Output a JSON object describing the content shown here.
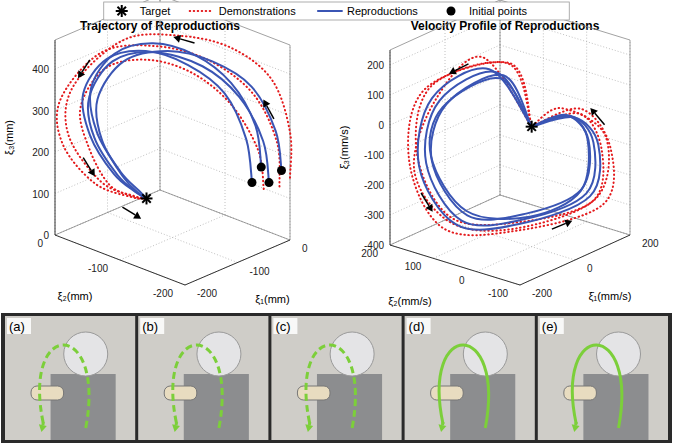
{
  "chart_data": [
    {
      "type": "line3d",
      "title": "Trajectory of Reproductions",
      "xlabel": "ξ₁(mm)",
      "ylabel": "ξ₂(mm)",
      "zlabel": "ξ₃(mm)",
      "xlim": [
        -200,
        0
      ],
      "xticks": [
        -200,
        -100,
        0
      ],
      "ylim": [
        -200,
        0
      ],
      "yticks": [
        -200,
        -100,
        0
      ],
      "zlim": [
        0,
        470
      ],
      "zticks": [
        0,
        100,
        200,
        300,
        400
      ],
      "grid": true,
      "legend": "top",
      "series": [
        {
          "name": "Target",
          "color": "#000000",
          "marker": "star",
          "values": [
            [
              -100,
              -60,
              70
            ]
          ]
        },
        {
          "name": "Demonstrations",
          "color": "#e41a1c",
          "line_style": "dotted",
          "values": [
            [
              [
                0,
                -200,
                150
              ],
              [
                0,
                -200,
                260
              ],
              [
                -10,
                -180,
                380
              ],
              [
                -40,
                -140,
                450
              ],
              [
                -80,
                -90,
                470
              ],
              [
                -120,
                -40,
                450
              ],
              [
                -165,
                0,
                340
              ],
              [
                -175,
                0,
                230
              ],
              [
                -150,
                -30,
                120
              ],
              [
                -115,
                -55,
                80
              ],
              [
                -100,
                -60,
                70
              ]
            ],
            [
              [
                -20,
                -200,
                140
              ],
              [
                -25,
                -200,
                250
              ],
              [
                -40,
                -175,
                360
              ],
              [
                -70,
                -130,
                430
              ],
              [
                -110,
                -80,
                455
              ],
              [
                -150,
                -30,
                430
              ],
              [
                -190,
                0,
                320
              ],
              [
                -185,
                0,
                210
              ],
              [
                -155,
                -25,
                115
              ],
              [
                -118,
                -52,
                78
              ],
              [
                -100,
                -60,
                70
              ]
            ],
            [
              [
                -50,
                -200,
                150
              ],
              [
                -55,
                -195,
                245
              ],
              [
                -70,
                -165,
                345
              ],
              [
                -95,
                -125,
                410
              ],
              [
                -125,
                -80,
                430
              ],
              [
                -155,
                -40,
                400
              ],
              [
                -170,
                -15,
                300
              ],
              [
                -160,
                -20,
                200
              ],
              [
                -140,
                -35,
                110
              ],
              [
                -115,
                -52,
                78
              ],
              [
                -100,
                -60,
                70
              ]
            ]
          ]
        },
        {
          "name": "Reproductions",
          "color": "#3a55b4",
          "line_style": "solid",
          "values": [
            [
              [
                -40,
                -200,
                160
              ],
              [
                -45,
                -195,
                260
              ],
              [
                -60,
                -170,
                360
              ],
              [
                -80,
                -130,
                420
              ],
              [
                -110,
                -80,
                440
              ],
              [
                -140,
                -40,
                410
              ],
              [
                -160,
                -20,
                320
              ],
              [
                -150,
                -20,
                220
              ],
              [
                -130,
                -40,
                130
              ],
              [
                -110,
                -55,
                85
              ],
              [
                -100,
                -60,
                70
              ]
            ],
            [
              [
                -60,
                -190,
                165
              ],
              [
                -65,
                -185,
                270
              ],
              [
                -75,
                -160,
                370
              ],
              [
                -95,
                -120,
                425
              ],
              [
                -120,
                -75,
                445
              ],
              [
                -145,
                -35,
                415
              ],
              [
                -165,
                -15,
                330
              ],
              [
                -155,
                -18,
                225
              ],
              [
                -135,
                -38,
                135
              ],
              [
                -112,
                -52,
                88
              ],
              [
                -100,
                -60,
                70
              ]
            ],
            [
              [
                -30,
                -180,
                180
              ],
              [
                -35,
                -175,
                280
              ],
              [
                -50,
                -150,
                375
              ],
              [
                -70,
                -110,
                430
              ],
              [
                -100,
                -70,
                450
              ],
              [
                -130,
                -35,
                420
              ],
              [
                -150,
                -15,
                335
              ],
              [
                -145,
                -20,
                230
              ],
              [
                -128,
                -42,
                140
              ],
              [
                -108,
                -55,
                90
              ],
              [
                -100,
                -60,
                70
              ]
            ],
            [
              [
                -10,
                -195,
                170
              ],
              [
                -15,
                -190,
                265
              ],
              [
                -30,
                -165,
                365
              ],
              [
                -55,
                -125,
                415
              ],
              [
                -90,
                -85,
                435
              ],
              [
                -125,
                -45,
                405
              ],
              [
                -150,
                -25,
                315
              ],
              [
                -145,
                -28,
                215
              ],
              [
                -125,
                -45,
                125
              ],
              [
                -108,
                -56,
                82
              ],
              [
                -100,
                -60,
                70
              ]
            ]
          ]
        },
        {
          "name": "Initial points",
          "color": "#000000",
          "marker": "circle",
          "values": [
            [
              -40,
              -200,
              160
            ],
            [
              -60,
              -190,
              165
            ],
            [
              -30,
              -180,
              180
            ],
            [
              -10,
              -195,
              170
            ]
          ]
        }
      ]
    },
    {
      "type": "line3d",
      "title": "Velocity Profile of Reproductions",
      "xlabel": "ξ̇₁(mm/s)",
      "ylabel": "ξ̇₂(mm/s)",
      "zlabel": "ξ̇₃(mm/s)",
      "xlim": [
        -200,
        200
      ],
      "xticks": [
        -200,
        0,
        200
      ],
      "ylim": [
        -100,
        200
      ],
      "yticks": [
        -100,
        0,
        100,
        200
      ],
      "zlim": [
        -400,
        250
      ],
      "zticks": [
        -400,
        -300,
        -200,
        -100,
        0,
        100,
        200
      ],
      "grid": true,
      "series": [
        {
          "name": "Target",
          "color": "#000000",
          "marker": "star",
          "values": [
            [
              0,
              0,
              0
            ]
          ]
        },
        {
          "name": "Demonstrations",
          "color": "#e41a1c",
          "line_style": "dotted",
          "values": [
            [
              [
                0,
                0,
                0
              ],
              [
                -30,
                30,
                210
              ],
              [
                -120,
                170,
                100
              ],
              [
                -130,
                200,
                -150
              ],
              [
                -70,
                160,
                -380
              ],
              [
                40,
                60,
                -390
              ],
              [
                150,
                -70,
                -290
              ],
              [
                160,
                -80,
                -100
              ],
              [
                100,
                -50,
                40
              ],
              [
                0,
                0,
                0
              ]
            ],
            [
              [
                0,
                0,
                0
              ],
              [
                -70,
                70,
                230
              ],
              [
                -130,
                140,
                80
              ],
              [
                -120,
                195,
                -180
              ],
              [
                -60,
                150,
                -360
              ],
              [
                20,
                50,
                -370
              ],
              [
                140,
                -60,
                -270
              ],
              [
                150,
                -75,
                -60
              ],
              [
                60,
                -30,
                50
              ],
              [
                0,
                0,
                0
              ]
            ],
            [
              [
                0,
                0,
                0
              ],
              [
                -20,
                40,
                200
              ],
              [
                -80,
                180,
                90
              ],
              [
                -110,
                195,
                -130
              ],
              [
                -65,
                145,
                -340
              ],
              [
                30,
                45,
                -350
              ],
              [
                135,
                -55,
                -280
              ],
              [
                145,
                -70,
                -110
              ],
              [
                90,
                -55,
                30
              ],
              [
                0,
                0,
                0
              ]
            ]
          ]
        },
        {
          "name": "Reproductions",
          "color": "#3a55b4",
          "line_style": "solid",
          "values": [
            [
              [
                0,
                0,
                0
              ],
              [
                -50,
                50,
                180
              ],
              [
                -100,
                150,
                60
              ],
              [
                -100,
                180,
                -160
              ],
              [
                -50,
                130,
                -350
              ],
              [
                30,
                40,
                -340
              ],
              [
                120,
                -50,
                -250
              ],
              [
                130,
                -60,
                -80
              ],
              [
                80,
                -40,
                20
              ],
              [
                0,
                0,
                0
              ]
            ],
            [
              [
                0,
                0,
                0
              ],
              [
                -40,
                40,
                170
              ],
              [
                -90,
                140,
                50
              ],
              [
                -95,
                170,
                -150
              ],
              [
                -45,
                120,
                -330
              ],
              [
                35,
                35,
                -320
              ],
              [
                110,
                -45,
                -235
              ],
              [
                120,
                -55,
                -70
              ],
              [
                70,
                -35,
                25
              ],
              [
                0,
                0,
                0
              ]
            ],
            [
              [
                0,
                0,
                0
              ],
              [
                -60,
                60,
                190
              ],
              [
                -110,
                160,
                70
              ],
              [
                -110,
                190,
                -170
              ],
              [
                -55,
                140,
                -365
              ],
              [
                25,
                45,
                -355
              ],
              [
                125,
                -55,
                -260
              ],
              [
                140,
                -65,
                -90
              ],
              [
                85,
                -45,
                15
              ],
              [
                0,
                0,
                0
              ]
            ],
            [
              [
                0,
                0,
                0
              ],
              [
                -45,
                45,
                160
              ],
              [
                -95,
                145,
                40
              ],
              [
                -90,
                175,
                -140
              ],
              [
                -40,
                125,
                -320
              ],
              [
                40,
                30,
                -330
              ],
              [
                115,
                -40,
                -245
              ],
              [
                125,
                -50,
                -75
              ],
              [
                75,
                -38,
                22
              ],
              [
                0,
                0,
                0
              ]
            ]
          ]
        }
      ]
    }
  ],
  "photos": {
    "labels": [
      "(a)",
      "(b)",
      "(c)",
      "(d)",
      "(e)"
    ]
  }
}
